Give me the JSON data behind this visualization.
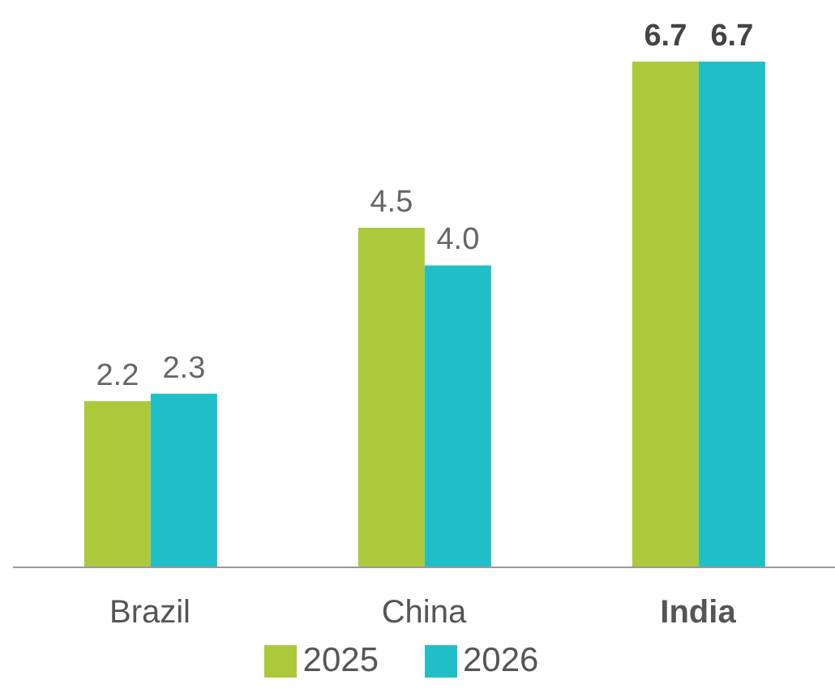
{
  "chart_data": {
    "type": "bar",
    "categories": [
      "Brazil",
      "China",
      "India"
    ],
    "series": [
      {
        "name": "2025",
        "color": "#abc93a",
        "values": [
          2.2,
          4.5,
          6.7
        ],
        "value_labels": [
          "2.2",
          "4.5",
          "6.7"
        ]
      },
      {
        "name": "2026",
        "color": "#20bfc8",
        "values": [
          2.3,
          4.0,
          6.7
        ],
        "value_labels": [
          "2.3",
          "4.0",
          "6.7"
        ]
      }
    ],
    "legend": "bottom",
    "grid": false
  }
}
